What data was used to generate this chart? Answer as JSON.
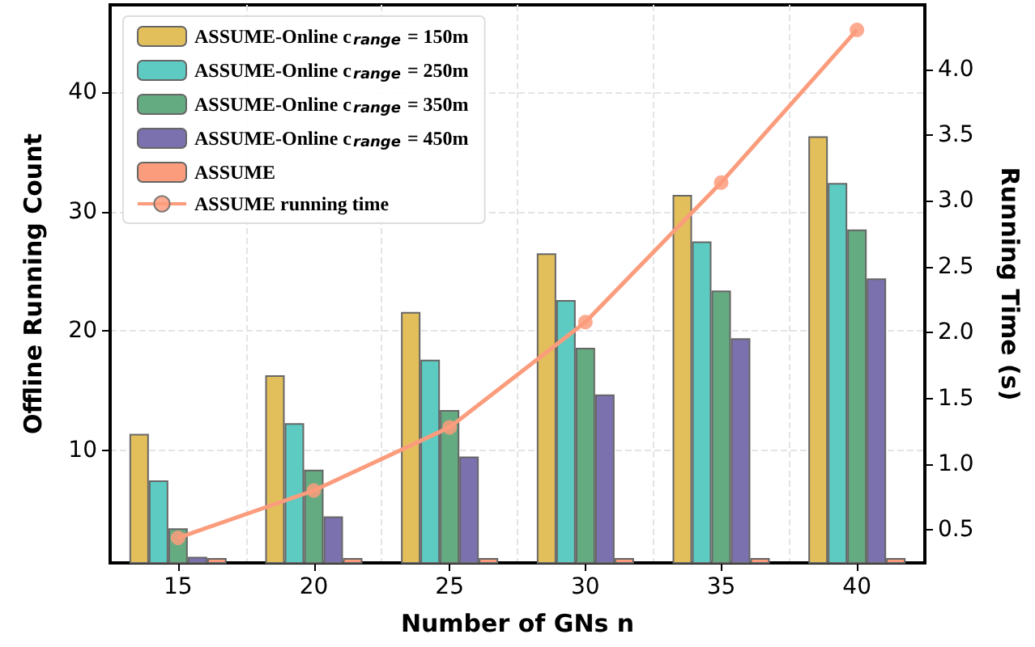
{
  "chart_data": {
    "type": "bar",
    "xlabel": "Number of GNs n",
    "ylabel": "Offline Running Count",
    "y2label": "Running Time (s)",
    "categories": [
      "15",
      "20",
      "25",
      "30",
      "35",
      "40"
    ],
    "series": [
      {
        "name": "ASSUME-Online c$_{range}$ = 150m",
        "color": "#e3bf5b",
        "values": [
          11.4,
          16.3,
          21.6,
          26.5,
          31.4,
          36.3
        ]
      },
      {
        "name": "ASSUME-Online c$_{range}$ = 250m",
        "color": "#5ecbc2",
        "values": [
          7.5,
          12.3,
          17.6,
          22.6,
          27.5,
          32.4
        ]
      },
      {
        "name": "ASSUME-Online c$_{range}$ = 350m",
        "color": "#65ab82",
        "values": [
          3.5,
          8.4,
          13.4,
          18.6,
          23.4,
          28.5
        ]
      },
      {
        "name": "ASSUME-Online c$_{range}$ = 450m",
        "color": "#7b71ae",
        "values": [
          1.1,
          4.5,
          9.5,
          14.7,
          19.4,
          24.4
        ]
      },
      {
        "name": "ASSUME",
        "color": "#fb9c7c",
        "values": [
          1.0,
          1.0,
          1.0,
          1.0,
          1.0,
          1.0
        ]
      },
      {
        "name": "ASSUME running time",
        "type": "line",
        "axis": "y2",
        "color": "#fb9c7c",
        "marker": "circle",
        "values": [
          0.44,
          0.8,
          1.28,
          2.08,
          3.14,
          4.3
        ]
      }
    ],
    "ylim": [
      0.6,
      47.3
    ],
    "yticks": [
      10,
      20,
      30,
      40
    ],
    "y2lim": [
      0.25,
      4.49
    ],
    "y2ticks": [
      0.5,
      {
        "value": 1,
        "label": "1.0"
      },
      1.5,
      {
        "value": 2,
        "label": "2.0"
      },
      2.5,
      {
        "value": 3,
        "label": "3.0"
      },
      3.5,
      {
        "value": 4,
        "label": "4.0"
      }
    ],
    "grid": true,
    "legend": "top left"
  }
}
